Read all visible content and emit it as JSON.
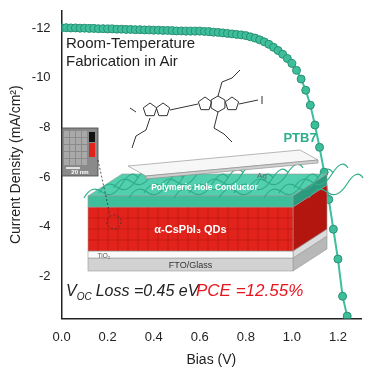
{
  "chart_data": {
    "type": "line",
    "xlabel": "Bias (V)",
    "ylabel": "Current Density (mA/cm²)",
    "x": [
      0.0,
      0.02,
      0.04,
      0.06,
      0.08,
      0.1,
      0.12,
      0.14,
      0.16,
      0.18,
      0.2,
      0.22,
      0.24,
      0.26,
      0.28,
      0.3,
      0.32,
      0.34,
      0.36,
      0.38,
      0.4,
      0.42,
      0.44,
      0.46,
      0.48,
      0.5,
      0.52,
      0.54,
      0.56,
      0.58,
      0.6,
      0.62,
      0.64,
      0.66,
      0.68,
      0.7,
      0.72,
      0.74,
      0.76,
      0.78,
      0.8,
      0.82,
      0.84,
      0.86,
      0.88,
      0.9,
      0.92,
      0.94,
      0.96,
      0.98,
      1.0,
      1.02,
      1.04,
      1.06,
      1.08,
      1.1,
      1.12,
      1.14,
      1.16,
      1.18,
      1.2,
      1.22,
      1.24
    ],
    "values": [
      -12.02,
      -12.02,
      -12.01,
      -12.01,
      -12.0,
      -12.0,
      -11.99,
      -11.99,
      -11.98,
      -11.98,
      -11.97,
      -11.97,
      -11.96,
      -11.96,
      -11.95,
      -11.95,
      -11.94,
      -11.94,
      -11.93,
      -11.93,
      -11.92,
      -11.92,
      -11.91,
      -11.91,
      -11.9,
      -11.89,
      -11.89,
      -11.88,
      -11.88,
      -11.88,
      -11.88,
      -11.87,
      -11.86,
      -11.84,
      -11.83,
      -11.81,
      -11.79,
      -11.77,
      -11.75,
      -11.73,
      -11.7,
      -11.65,
      -11.6,
      -11.53,
      -11.45,
      -11.35,
      -11.23,
      -11.1,
      -10.95,
      -10.78,
      -10.58,
      -10.3,
      -9.95,
      -9.5,
      -8.9,
      -8.1,
      -7.2,
      -6.2,
      -5.1,
      -3.9,
      -2.7,
      -1.2,
      -0.4
    ],
    "color": "#3dbf9c",
    "marker": "circle",
    "xlim": [
      0,
      1.3
    ],
    "xticks": [
      {
        "value": 0,
        "label": "0.0"
      },
      0.2,
      0.4,
      0.6,
      0.8,
      {
        "value": 1,
        "label": "1.0"
      },
      1.2
    ],
    "ylim": [
      -0.3,
      -12.7
    ],
    "yticks": [
      -12,
      -10,
      -8,
      -6,
      -4,
      -2
    ],
    "grid": false,
    "annotations": {
      "note": [
        "Room-Temperature",
        "Fabrication in Air"
      ],
      "voc": {
        "symbol": "V",
        "subscript": "OC",
        "text": "Loss =0.45 eV"
      },
      "pce": "PCE =12.55%"
    }
  },
  "diagram": {
    "polymer": "PTB7",
    "layers": [
      "Ag",
      "Polymeric Hole Conductor",
      "α-CsPbI₃ QDs",
      "TiO₂",
      "FTO/Glass"
    ],
    "scale_bar": "20 nm"
  }
}
